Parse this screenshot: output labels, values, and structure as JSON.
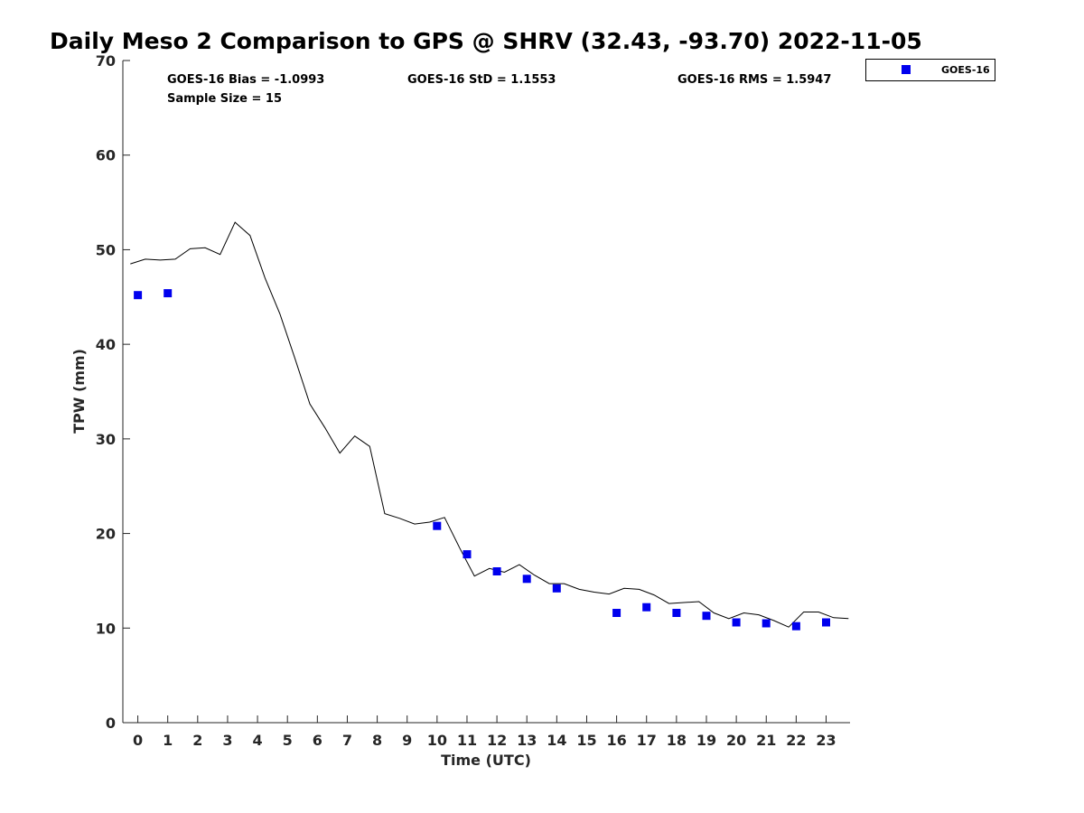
{
  "chart_data": {
    "type": "line",
    "title": "Daily Meso 2 Comparison to GPS @ SHRV (32.43, -93.70) 2022-11-05",
    "xlabel": "Time (UTC)",
    "ylabel": "TPW (mm)",
    "xlim": [
      -0.5,
      23.8
    ],
    "ylim": [
      0,
      70
    ],
    "x_ticks": [
      0,
      1,
      2,
      3,
      4,
      5,
      6,
      7,
      8,
      9,
      10,
      11,
      12,
      13,
      14,
      15,
      16,
      17,
      18,
      19,
      20,
      21,
      22,
      23
    ],
    "x_tick_labels": [
      "0",
      "1",
      "2",
      "3",
      "4",
      "5",
      "6",
      "7",
      "8",
      "9",
      "10",
      "11",
      "12",
      "13",
      "14",
      "15",
      "16",
      "17",
      "18",
      "19",
      "20",
      "21",
      "22",
      "23"
    ],
    "y_ticks": [
      0,
      10,
      20,
      30,
      40,
      50,
      60,
      70
    ],
    "y_tick_labels": [
      "0",
      "10",
      "20",
      "30",
      "40",
      "50",
      "60",
      "70"
    ],
    "grid": false,
    "legend_position": "top-right, outside plot",
    "stats": {
      "bias": "GOES-16 Bias = -1.0993",
      "std": "GOES-16 StD = 1.1553",
      "rms": "GOES-16 RMS = 1.5947",
      "sample": "Sample Size = 15"
    },
    "series": [
      {
        "style": "line",
        "color": "#000000",
        "x": [
          -0.25,
          0.25,
          0.75,
          1.25,
          1.75,
          2.25,
          2.75,
          3.25,
          3.75,
          4.25,
          4.75,
          5.25,
          5.75,
          6.25,
          6.75,
          7.25,
          7.75,
          8.25,
          8.75,
          9.25,
          9.75,
          10.25,
          10.75,
          11.25,
          11.75,
          12.25,
          12.75,
          13.25,
          13.75,
          14.25,
          14.75,
          15.25,
          15.75,
          16.25,
          16.75,
          17.25,
          17.75,
          18.25,
          18.75,
          19.25,
          19.75,
          20.25,
          20.75,
          21.25,
          21.75,
          22.25,
          22.75,
          23.25,
          23.75
        ],
        "y": [
          48.5,
          49.0,
          48.9,
          49.0,
          50.1,
          50.2,
          49.5,
          52.9,
          51.5,
          47.0,
          43.2,
          38.5,
          33.7,
          31.2,
          28.5,
          30.3,
          29.2,
          22.1,
          21.6,
          21.0,
          21.2,
          21.7,
          18.5,
          15.5,
          16.3,
          15.9,
          16.7,
          15.6,
          14.7,
          14.7,
          14.1,
          13.8,
          13.6,
          14.2,
          14.1,
          13.5,
          12.6,
          12.7,
          12.8,
          11.6,
          11.0,
          11.6,
          11.4,
          10.8,
          10.1,
          11.7,
          11.7,
          11.1,
          11.0
        ]
      },
      {
        "name": "GOES-16",
        "style": "scatter",
        "marker": "square",
        "color": "#0000ee",
        "x": [
          0,
          1,
          10,
          11,
          12,
          13,
          14,
          16,
          17,
          18,
          19,
          20,
          21,
          22,
          23
        ],
        "y": [
          45.2,
          45.4,
          20.8,
          17.8,
          16.0,
          15.2,
          14.2,
          11.6,
          12.2,
          11.6,
          11.3,
          10.6,
          10.5,
          10.2,
          10.6
        ]
      }
    ]
  }
}
